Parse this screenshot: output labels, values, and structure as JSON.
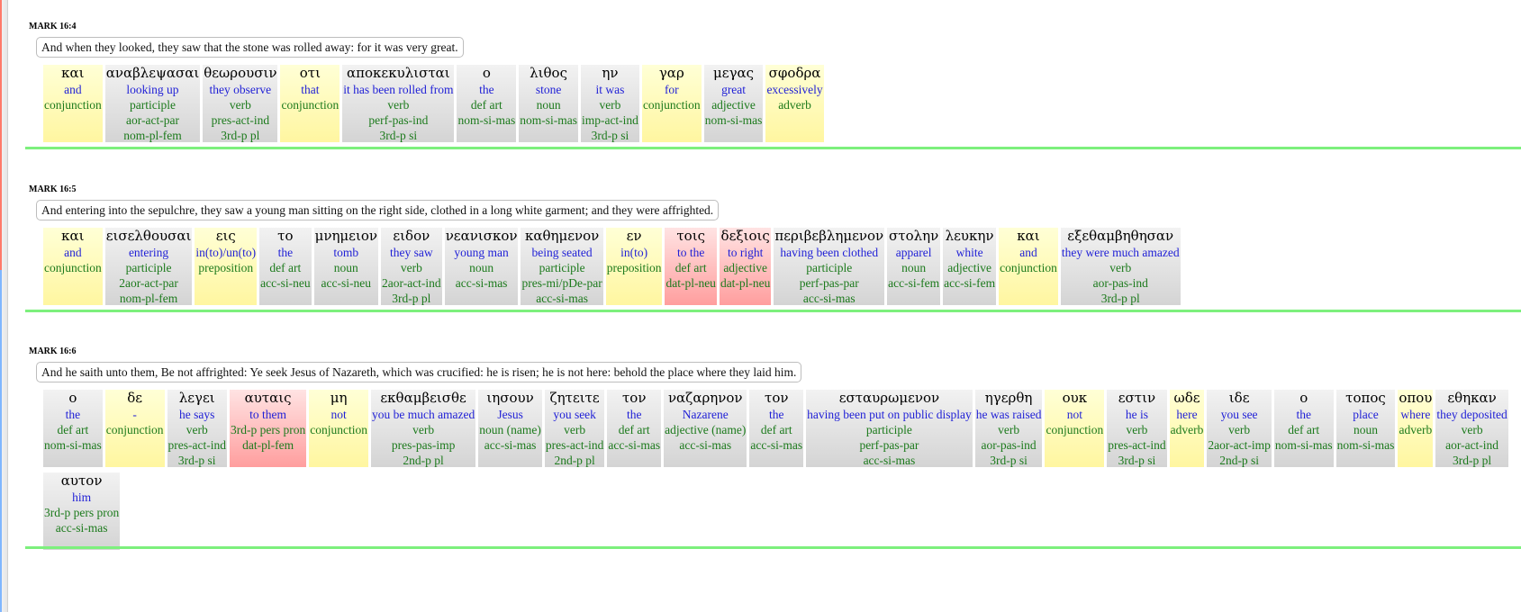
{
  "verses": [
    {
      "ref": "MARK 16:4",
      "translation": "And when they looked, they saw that the stone was rolled away: for it was very great.",
      "words": [
        {
          "greek": "και",
          "english": "and",
          "lines": [
            "conjunction"
          ],
          "color": "yellow"
        },
        {
          "greek": "αναβλεψασαι",
          "english": "looking up",
          "lines": [
            "participle",
            "aor-act-par",
            "nom-pl-fem"
          ],
          "color": "gray"
        },
        {
          "greek": "θεωρουσιν",
          "english": "they observe",
          "lines": [
            "verb",
            "pres-act-ind",
            "3rd-p pl"
          ],
          "color": "gray"
        },
        {
          "greek": "οτι",
          "english": "that",
          "lines": [
            "conjunction"
          ],
          "color": "yellow"
        },
        {
          "greek": "αποκεκυλισται",
          "english": "it has been rolled from",
          "lines": [
            "verb",
            "perf-pas-ind",
            "3rd-p si"
          ],
          "color": "gray"
        },
        {
          "greek": "ο",
          "english": "the",
          "lines": [
            "def art",
            "nom-si-mas"
          ],
          "color": "gray"
        },
        {
          "greek": "λιθος",
          "english": "stone",
          "lines": [
            "noun",
            "nom-si-mas"
          ],
          "color": "gray"
        },
        {
          "greek": "ην",
          "english": "it was",
          "lines": [
            "verb",
            "imp-act-ind",
            "3rd-p si"
          ],
          "color": "gray"
        },
        {
          "greek": "γαρ",
          "english": "for",
          "lines": [
            "conjunction"
          ],
          "color": "yellow"
        },
        {
          "greek": "μεγας",
          "english": "great",
          "lines": [
            "adjective",
            "nom-si-mas"
          ],
          "color": "gray"
        },
        {
          "greek": "σφοδρα",
          "english": "excessively",
          "lines": [
            "adverb"
          ],
          "color": "yellow"
        }
      ]
    },
    {
      "ref": "MARK 16:5",
      "translation": "And entering into the sepulchre, they saw a young man sitting on the right side, clothed in a long white garment; and they were affrighted.",
      "words": [
        {
          "greek": "και",
          "english": "and",
          "lines": [
            "conjunction"
          ],
          "color": "yellow"
        },
        {
          "greek": "εισελθουσαι",
          "english": "entering",
          "lines": [
            "participle",
            "2aor-act-par",
            "nom-pl-fem"
          ],
          "color": "gray"
        },
        {
          "greek": "εις",
          "english": "in(to)/un(to)",
          "lines": [
            "preposition"
          ],
          "color": "yellow"
        },
        {
          "greek": "το",
          "english": "the",
          "lines": [
            "def art",
            "acc-si-neu"
          ],
          "color": "gray"
        },
        {
          "greek": "μνημειον",
          "english": "tomb",
          "lines": [
            "noun",
            "acc-si-neu"
          ],
          "color": "gray"
        },
        {
          "greek": "ειδον",
          "english": "they saw",
          "lines": [
            "verb",
            "2aor-act-ind",
            "3rd-p pl"
          ],
          "color": "gray"
        },
        {
          "greek": "νεανισκον",
          "english": "young man",
          "lines": [
            "noun",
            "acc-si-mas"
          ],
          "color": "gray"
        },
        {
          "greek": "καθημενον",
          "english": "being seated",
          "lines": [
            "participle",
            "pres-mi/pDe-par",
            "acc-si-mas"
          ],
          "color": "gray"
        },
        {
          "greek": "εν",
          "english": "in(to)",
          "lines": [
            "preposition"
          ],
          "color": "yellow"
        },
        {
          "greek": "τοις",
          "english": "to the",
          "lines": [
            "def art",
            "dat-pl-neu"
          ],
          "color": "red"
        },
        {
          "greek": "δεξιοις",
          "english": "to right",
          "lines": [
            "adjective",
            "dat-pl-neu"
          ],
          "color": "red"
        },
        {
          "greek": "περιβεβλημενον",
          "english": "having been clothed",
          "lines": [
            "participle",
            "perf-pas-par",
            "acc-si-mas"
          ],
          "color": "gray"
        },
        {
          "greek": "στολην",
          "english": "apparel",
          "lines": [
            "noun",
            "acc-si-fem"
          ],
          "color": "gray"
        },
        {
          "greek": "λευκην",
          "english": "white",
          "lines": [
            "adjective",
            "acc-si-fem"
          ],
          "color": "gray"
        },
        {
          "greek": "και",
          "english": "and",
          "lines": [
            "conjunction"
          ],
          "color": "yellow"
        },
        {
          "greek": "εξεθαμβηθησαν",
          "english": "they were much amazed",
          "lines": [
            "verb",
            "aor-pas-ind",
            "3rd-p pl"
          ],
          "color": "gray"
        }
      ]
    },
    {
      "ref": "MARK 16:6",
      "translation": "And he saith unto them, Be not affrighted: Ye seek Jesus of Nazareth, which was crucified: he is risen; he is not here: behold the place where they laid him.",
      "words": [
        {
          "greek": "ο",
          "english": "the",
          "lines": [
            "def art",
            "nom-si-mas"
          ],
          "color": "gray"
        },
        {
          "greek": "δε",
          "english": "-",
          "lines": [
            "conjunction"
          ],
          "color": "yellow"
        },
        {
          "greek": "λεγει",
          "english": "he says",
          "lines": [
            "verb",
            "pres-act-ind",
            "3rd-p si"
          ],
          "color": "gray"
        },
        {
          "greek": "αυταις",
          "english": "to them",
          "lines": [
            "3rd-p pers pron",
            "dat-pl-fem"
          ],
          "color": "red"
        },
        {
          "greek": "μη",
          "english": "not",
          "lines": [
            "conjunction"
          ],
          "color": "yellow"
        },
        {
          "greek": "εκθαμβεισθε",
          "english": "you be much amazed",
          "lines": [
            "verb",
            "pres-pas-imp",
            "2nd-p pl"
          ],
          "color": "gray"
        },
        {
          "greek": "ιησουν",
          "english": "Jesus",
          "lines": [
            "noun (name)",
            "acc-si-mas"
          ],
          "color": "gray"
        },
        {
          "greek": "ζητειτε",
          "english": "you seek",
          "lines": [
            "verb",
            "pres-act-ind",
            "2nd-p pl"
          ],
          "color": "gray"
        },
        {
          "greek": "τον",
          "english": "the",
          "lines": [
            "def art",
            "acc-si-mas"
          ],
          "color": "gray"
        },
        {
          "greek": "ναζαρηνον",
          "english": "Nazarene",
          "lines": [
            "adjective (name)",
            "acc-si-mas"
          ],
          "color": "gray"
        },
        {
          "greek": "τον",
          "english": "the",
          "lines": [
            "def art",
            "acc-si-mas"
          ],
          "color": "gray"
        },
        {
          "greek": "εσταυρωμενον",
          "english": "having been put on public display",
          "lines": [
            "participle",
            "perf-pas-par",
            "acc-si-mas"
          ],
          "color": "gray"
        },
        {
          "greek": "ηγερθη",
          "english": "he was raised",
          "lines": [
            "verb",
            "aor-pas-ind",
            "3rd-p si"
          ],
          "color": "gray"
        },
        {
          "greek": "ουκ",
          "english": "not",
          "lines": [
            "conjunction"
          ],
          "color": "yellow"
        },
        {
          "greek": "εστιν",
          "english": "he is",
          "lines": [
            "verb",
            "pres-act-ind",
            "3rd-p si"
          ],
          "color": "gray"
        },
        {
          "greek": "ωδε",
          "english": "here",
          "lines": [
            "adverb"
          ],
          "color": "yellow"
        },
        {
          "greek": "ιδε",
          "english": "you see",
          "lines": [
            "verb",
            "2aor-act-imp",
            "2nd-p si"
          ],
          "color": "gray"
        },
        {
          "greek": "ο",
          "english": "the",
          "lines": [
            "def art",
            "nom-si-mas"
          ],
          "color": "gray"
        },
        {
          "greek": "τοπος",
          "english": "place",
          "lines": [
            "noun",
            "nom-si-mas"
          ],
          "color": "gray"
        },
        {
          "greek": "οπου",
          "english": "where",
          "lines": [
            "adverb"
          ],
          "color": "yellow"
        },
        {
          "greek": "εθηκαν",
          "english": "they deposited",
          "lines": [
            "verb",
            "aor-act-ind",
            "3rd-p pl"
          ],
          "color": "gray"
        },
        {
          "greek": "αυτον",
          "english": "him",
          "lines": [
            "3rd-p pers pron",
            "acc-si-mas"
          ],
          "color": "gray"
        }
      ]
    }
  ]
}
